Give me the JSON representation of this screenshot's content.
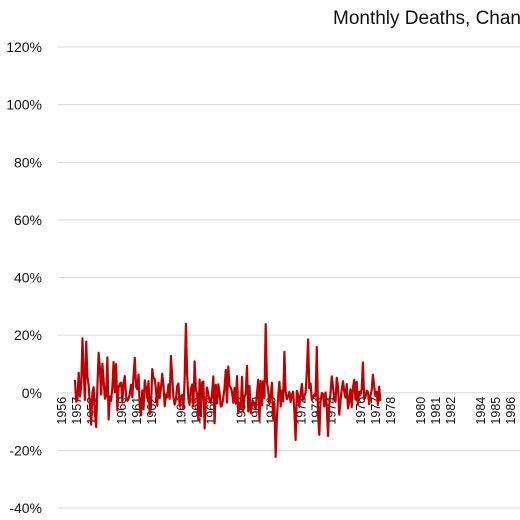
{
  "chart_data": {
    "type": "line",
    "title": "Monthly Deaths, Chang",
    "xlabel": "",
    "ylabel": "",
    "ylim": [
      -40,
      120
    ],
    "y_ticks": [
      -40,
      -20,
      0,
      20,
      40,
      60,
      80,
      100,
      120
    ],
    "y_tick_labels": [
      "-40%",
      "-20%",
      "0%",
      "20%",
      "40%",
      "60%",
      "80%",
      "100%",
      "120%"
    ],
    "x_tick_labels": [
      "1956",
      "1957",
      "1958",
      "1960",
      "1961",
      "1962",
      "1964",
      "1965",
      "1966",
      "1968",
      "1969",
      "1970",
      "1972",
      "1973",
      "1974",
      "1976",
      "1977",
      "1978",
      "1980",
      "1981",
      "1982",
      "1984",
      "1985",
      "1986"
    ],
    "grid": true,
    "legend": "none",
    "color": "#c00000",
    "series": [
      {
        "x_start": "1956-01",
        "frequency": "monthly",
        "values": [
          null,
          null,
          null,
          null,
          null,
          null,
          null,
          null,
          null,
          null,
          null,
          null,
          4.5,
          -3.1,
          -2.4,
          6.9,
          -1.3,
          2.1,
          18.9,
          6.8,
          -2.5,
          17.7,
          5.7,
          2.4,
          -4.4,
          -11.1,
          0.1,
          1.9,
          -7.2,
          -11.9,
          2.1,
          13.9,
          8.6,
          -0.6,
          10.0,
          4.4,
          -2.1,
          -1.2,
          12.3,
          -9.3,
          -1.3,
          -2.8,
          1.8,
          10.7,
          0.2,
          9.9,
          -6.1,
          1.8,
          3.1,
          3.5,
          -3.3,
          3.4,
          5.8,
          -1.3,
          -2.8,
          -2.1,
          -0.2,
          2.8,
          -1.5,
          6.0,
          12.1,
          2.2,
          1.2,
          6.3,
          -4.8,
          -7.8,
          0.8,
          -5.7,
          4.3,
          1.6,
          -1.8,
          4.0,
          -7.4,
          -5.2,
          8.2,
          5.1,
          4.8,
          0.9,
          -4.5,
          3.5,
          -1.8,
          1.6,
          6.6,
          2.5,
          -4.7,
          -0.6,
          -1.6,
          2.9,
          -2.1,
          12.8,
          5.3,
          -1.7,
          -4.1,
          -2.3,
          2.3,
          3.2,
          -4.7,
          -1.4,
          -0.8,
          -5.7,
          5.0,
          23.9,
          6.2,
          -2.1,
          -4.2,
          1.3,
          2.9,
          -4.7,
          10.9,
          0.9,
          -0.4,
          -9.6,
          4.6,
          -8.1,
          3.6,
          3.9,
          -12.4,
          -3.2,
          1.8,
          -0.8,
          -2.7,
          -3.5,
          -0.2,
          5.7,
          -10.6,
          2.7,
          -3.7,
          2.9,
          -0.2,
          -4.8,
          -4.3,
          -1.7,
          1.8,
          7.9,
          -3.4,
          9.1,
          2.3,
          1.8,
          0.3,
          -3.5,
          1.6,
          -3.8,
          5.8,
          -7.1,
          -3.8,
          -5.3,
          5.5,
          -6.4,
          -1.3,
          -0.3,
          9.3,
          -6.5,
          2.3,
          -7.0,
          -3.8,
          -2.9,
          -4.6,
          -5.3,
          -0.4,
          4.5,
          -9.8,
          4.1,
          -4.4,
          4.0,
          -1.8,
          23.8,
          3.6,
          1.0,
          -3.9,
          -1.3,
          3.5,
          -9.1,
          -3.7,
          -22.3,
          -8.5,
          -1.4,
          3.8,
          -4.8,
          0.8,
          -3.0,
          14.2,
          0.4,
          -2.2,
          -1.3,
          0.3,
          -3.2,
          -0.8,
          0.4,
          -6.1,
          -16.4,
          0.6,
          -0.8,
          -4.9,
          -0.7,
          3.1,
          -2.4,
          -1.2,
          0.1,
          7.0,
          18.5,
          1.6,
          3.2,
          -2.5,
          -1.4,
          -0.6,
          -1.3,
          15.9,
          -7.3,
          -14.6,
          -3.2,
          -0.1,
          -0.5,
          -4.8,
          0.1,
          -4.6,
          -15.0,
          -3.9,
          -0.2,
          5.7,
          2.0,
          -2.0,
          -3.1,
          5.2,
          2.2,
          -7.6,
          -3.0,
          1.0,
          4.0,
          0.5,
          -1.7,
          3.0,
          -5.4,
          -2.7,
          1.2,
          -5.0,
          1.6,
          4.5,
          -2.3,
          3.8,
          -4.1,
          0.3,
          -0.8,
          1.3,
          10.5,
          -2.3,
          -1.4,
          0.6,
          0.3,
          -4.0,
          -0.9,
          0.7,
          6.2,
          2.4,
          -1.1,
          0.4,
          -4.2,
          2.1,
          -2.8
        ]
      }
    ]
  }
}
